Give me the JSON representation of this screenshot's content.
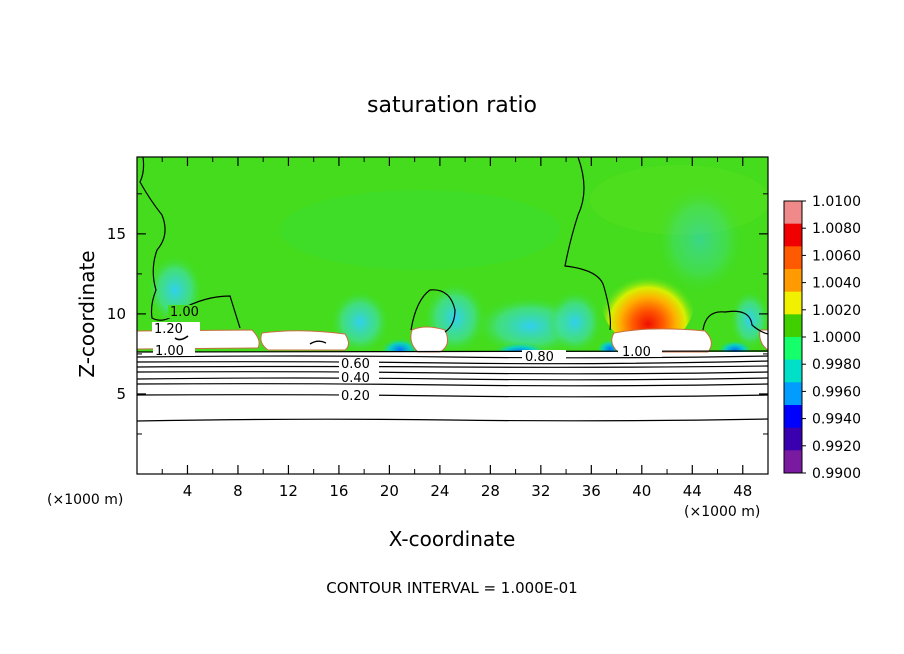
{
  "chart_data": {
    "type": "heatmap",
    "title": "saturation ratio",
    "xlabel": "X-coordinate",
    "ylabel": "Z-coordinate",
    "x_unit_left": "(×1000 m)",
    "x_unit_right": "(×1000 m)",
    "xlim": [
      0,
      50
    ],
    "ylim": [
      0,
      19.8
    ],
    "x_ticks": [
      "4",
      "8",
      "12",
      "16",
      "20",
      "24",
      "28",
      "32",
      "36",
      "40",
      "44",
      "48"
    ],
    "x_tick_values": [
      4,
      8,
      12,
      16,
      20,
      24,
      28,
      32,
      36,
      40,
      44,
      48
    ],
    "y_ticks": [
      "5",
      "10",
      "15"
    ],
    "y_tick_values": [
      5,
      10,
      15
    ],
    "colorbar": {
      "labels": [
        "1.0100",
        "1.0080",
        "1.0060",
        "1.0040",
        "1.0020",
        "1.0000",
        "0.9980",
        "0.9960",
        "0.9940",
        "0.9920",
        "0.9900"
      ],
      "values": [
        1.01,
        1.008,
        1.006,
        1.004,
        1.002,
        1.0,
        0.998,
        0.996,
        0.994,
        0.992,
        0.99
      ],
      "colors": [
        "#f08a8a",
        "#f00000",
        "#ff5a00",
        "#ff9a00",
        "#f0f000",
        "#40d000",
        "#14ff6a",
        "#00e0c8",
        "#009cff",
        "#0000ff",
        "#3a00b0",
        "#7a1aa0"
      ]
    },
    "contour_labels": [
      "1.00",
      "1.20",
      "1.00",
      "0.60",
      "0.40",
      "0.20",
      "0.80",
      "1.00"
    ],
    "contour_levels_z": [
      3.4,
      4.9,
      5.4,
      5.9,
      6.3,
      6.7,
      7.0,
      7.3,
      7.6
    ],
    "footnote": "CONTOUR INTERVAL = 1.000E-01",
    "colors": {
      "background_field": "#40e020",
      "white_cloud": "#ffffff",
      "contour": "#000000"
    }
  }
}
